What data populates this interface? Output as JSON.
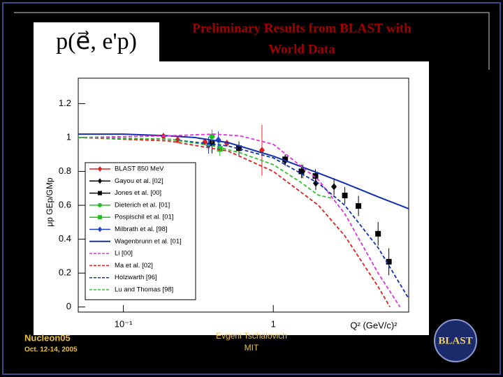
{
  "logo": "p(e⃗, e'p)",
  "title": [
    "Preliminary Results from BLAST with",
    "World Data"
  ],
  "footer": {
    "conference": "Nucleon05",
    "date": "Oct. 12-14, 2005",
    "author": [
      "Evgeni Tschalovich",
      "MIT"
    ],
    "badge": "BLAST"
  },
  "chart_data": {
    "type": "scatter",
    "x_label": "Q² (GeV/c)²",
    "y_label": "μp GEp/GMp",
    "xlim": [
      0.05,
      8
    ],
    "ylim": [
      -0.03,
      1.35
    ],
    "xscale": "log",
    "xticks": [
      {
        "value": 0.1,
        "label": "10⁻¹"
      },
      1
    ],
    "yticks": [
      0,
      0.2,
      0.4,
      0.6,
      0.8,
      1,
      1.2
    ],
    "legend": "left",
    "series": [
      {
        "name": "BLAST 850 MeV",
        "color": "#e02020",
        "marker": "diamond",
        "x": [
          0.185,
          0.23,
          0.35,
          0.49,
          0.84
        ],
        "values": [
          1.007,
          0.986,
          0.974,
          0.966,
          0.925
        ],
        "errors": [
          0.02,
          0.02,
          0.02,
          0.02,
          0.15
        ]
      },
      {
        "name": "Gayou et al. [02]",
        "color": "#000000",
        "marker": "diamond",
        "x": [
          1.2,
          1.57,
          1.92,
          2.54
        ],
        "values": [
          0.863,
          0.8,
          0.73,
          0.71
        ],
        "errors": [
          0.03,
          0.04,
          0.04,
          0.05
        ]
      },
      {
        "name": "Jones et al. [00]",
        "color": "#000000",
        "marker": "square",
        "x": [
          0.39,
          0.59,
          1.2,
          1.54,
          1.91,
          3.0,
          3.7,
          5.0,
          5.9
        ],
        "values": [
          0.966,
          0.937,
          0.871,
          0.8,
          0.773,
          0.658,
          0.596,
          0.432,
          0.267
        ],
        "errors": [
          0.06,
          0.04,
          0.03,
          0.04,
          0.04,
          0.05,
          0.06,
          0.07,
          0.08
        ]
      },
      {
        "name": "Dieterich et al. [01]",
        "color": "#20c020",
        "marker": "circle",
        "x": [
          0.39
        ],
        "values": [
          1.007
        ],
        "errors": [
          0.04
        ]
      },
      {
        "name": "Pospischil et al. [01]",
        "color": "#20c020",
        "marker": "square",
        "x": [
          0.44
        ],
        "values": [
          0.933
        ],
        "errors": [
          0.04
        ]
      },
      {
        "name": "Milbrath et al. [98]",
        "color": "#2040c0",
        "marker": "diamond",
        "x": [
          0.37,
          0.43
        ],
        "values": [
          0.954,
          0.986
        ],
        "errors": [
          0.05,
          0.05
        ]
      },
      {
        "name": "Wagenbrunn et al. [01]",
        "color": "#1030b0",
        "line": "solid",
        "x": [
          0.05,
          0.1,
          0.2,
          0.3,
          0.5,
          1,
          2,
          3,
          5,
          8
        ],
        "values": [
          1.02,
          1.02,
          1.01,
          1.0,
          0.97,
          0.89,
          0.79,
          0.73,
          0.65,
          0.58
        ]
      },
      {
        "name": "Li [00]",
        "color": "#e030e0",
        "line": "dashed",
        "x": [
          0.05,
          0.2,
          0.4,
          0.6,
          1,
          2,
          3,
          5,
          7
        ],
        "values": [
          1.0,
          1.01,
          1.02,
          1.01,
          0.96,
          0.75,
          0.55,
          0.2,
          0
        ]
      },
      {
        "name": "Ma et al. [02]",
        "color": "#e02020",
        "line": "dashed",
        "x": [
          0.05,
          0.2,
          0.5,
          1,
          2,
          3,
          5,
          6
        ],
        "values": [
          1.0,
          0.98,
          0.92,
          0.8,
          0.6,
          0.42,
          0.12,
          0
        ]
      },
      {
        "name": "Holzwarth [96]",
        "color": "#1030b0",
        "line": "dashed",
        "x": [
          0.05,
          0.2,
          0.5,
          1,
          2,
          3,
          5,
          8
        ],
        "values": [
          1.0,
          0.99,
          0.95,
          0.88,
          0.73,
          0.6,
          0.35,
          0.05
        ]
      },
      {
        "name": "Lu and Thomas [98]",
        "color": "#30c030",
        "line": "dashed",
        "x": [
          0.05,
          0.2,
          0.4,
          0.6,
          1,
          1.5,
          2,
          2.5
        ],
        "values": [
          1.0,
          0.99,
          0.95,
          0.91,
          0.84,
          0.74,
          0.66,
          0.64
        ]
      }
    ]
  }
}
